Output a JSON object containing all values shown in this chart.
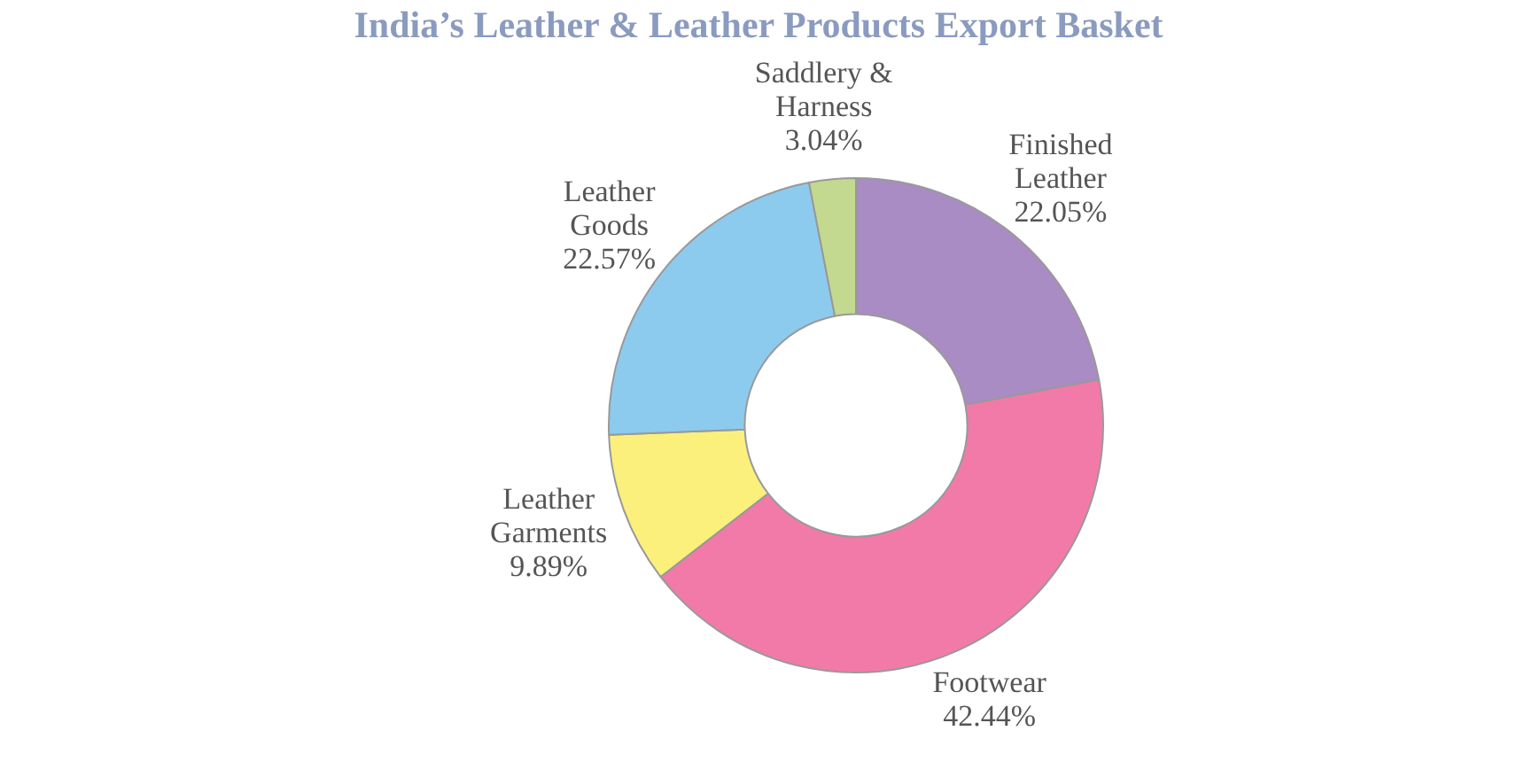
{
  "chart_data": {
    "type": "donut",
    "title": "India’s Leather & Leather Products Export Basket",
    "categories": [
      "Finished Leather",
      "Footwear",
      "Leather Garments",
      "Leather Goods",
      "Saddlery & Harness"
    ],
    "values": [
      22.05,
      42.44,
      9.89,
      22.57,
      3.04
    ],
    "colors": [
      "#a98cc4",
      "#f27aa8",
      "#fbf07c",
      "#8ccbee",
      "#c3d98f"
    ],
    "value_labels": [
      "22.05%",
      "42.44%",
      "9.89%",
      "22.57%",
      "3.04%"
    ],
    "legend": false
  }
}
